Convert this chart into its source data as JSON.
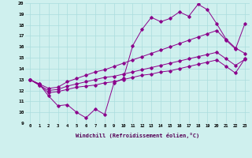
{
  "xlabel": "Windchill (Refroidissement éolien,°C)",
  "background_color": "#cff0ee",
  "line_color": "#8b008b",
  "xlim": [
    -0.5,
    23.5
  ],
  "ylim": [
    9,
    20
  ],
  "grid_color": "#aadddd",
  "series": {
    "volatile": {
      "x": [
        0,
        1,
        2,
        3,
        4,
        5,
        6,
        7,
        8,
        9,
        10,
        11,
        12,
        13,
        14,
        15,
        16,
        17,
        18,
        19,
        20,
        21,
        22,
        23
      ],
      "y": [
        13.0,
        12.6,
        11.5,
        10.6,
        10.7,
        10.0,
        9.5,
        10.3,
        9.8,
        12.7,
        13.1,
        16.1,
        17.6,
        18.7,
        18.3,
        18.6,
        19.2,
        18.8,
        19.9,
        19.4,
        18.1,
        16.7,
        15.9,
        15.4
      ]
    },
    "upper_band": {
      "x": [
        0,
        1,
        2,
        3,
        4,
        5,
        6,
        7,
        8,
        9,
        10,
        11,
        12,
        13,
        14,
        15,
        16,
        17,
        18,
        19,
        20,
        21,
        22,
        23
      ],
      "y": [
        13.0,
        12.6,
        12.2,
        12.3,
        12.8,
        13.1,
        13.4,
        13.7,
        13.9,
        14.2,
        14.5,
        14.8,
        15.1,
        15.4,
        15.7,
        16.0,
        16.3,
        16.6,
        16.9,
        17.2,
        17.5,
        16.6,
        15.8,
        18.1
      ]
    },
    "lower_band": {
      "x": [
        0,
        1,
        2,
        3,
        4,
        5,
        6,
        7,
        8,
        9,
        10,
        11,
        12,
        13,
        14,
        15,
        16,
        17,
        18,
        19,
        20,
        21,
        22,
        23
      ],
      "y": [
        13.0,
        12.5,
        12.0,
        12.1,
        12.4,
        12.6,
        12.8,
        13.0,
        13.2,
        13.3,
        13.5,
        13.7,
        13.9,
        14.1,
        14.3,
        14.5,
        14.7,
        14.9,
        15.1,
        15.3,
        15.5,
        14.9,
        14.3,
        14.85
      ]
    },
    "bottom_band": {
      "x": [
        0,
        1,
        2,
        3,
        4,
        5,
        6,
        7,
        8,
        9,
        10,
        11,
        12,
        13,
        14,
        15,
        16,
        17,
        18,
        19,
        20,
        21,
        22,
        23
      ],
      "y": [
        13.0,
        12.5,
        11.8,
        11.9,
        12.1,
        12.3,
        12.4,
        12.5,
        12.7,
        12.8,
        13.0,
        13.2,
        13.4,
        13.5,
        13.7,
        13.8,
        14.0,
        14.2,
        14.4,
        14.6,
        14.8,
        14.2,
        13.6,
        14.9
      ]
    }
  }
}
